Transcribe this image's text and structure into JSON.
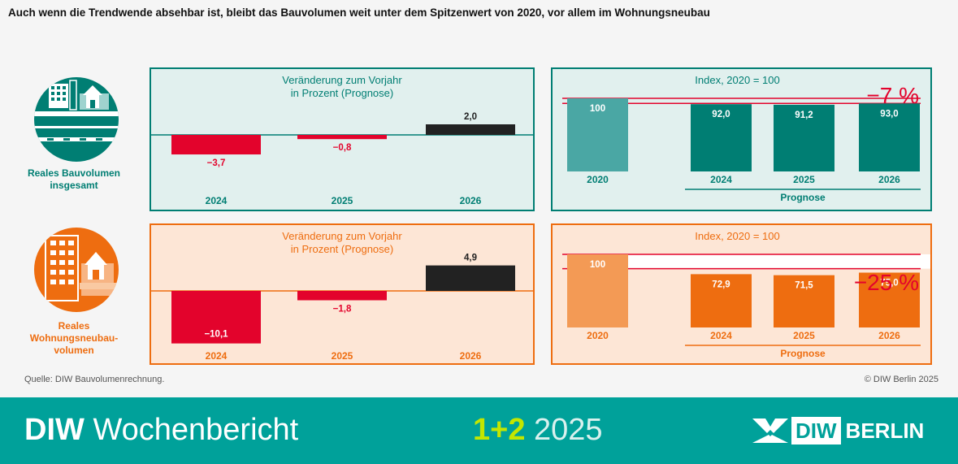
{
  "title": "Auch wenn die Trendwende absehbar ist, bleibt das Bauvolumen weit unter dem Spitzenwert von 2020, vor allem im Wohnungsneubau",
  "colors": {
    "teal": "#007e73",
    "teal_light": "#e1f0ee",
    "teal_2020": "#4aa7a4",
    "red": "#e3032c",
    "orange": "#ee6d10",
    "orange_light": "#fde6d6",
    "orange_2020": "#f39a55",
    "dark": "#222222",
    "footer": "#00a19a",
    "footer_highlight": "#c3e600"
  },
  "rows": [
    {
      "label_lines": [
        "Reales Bauvolumen",
        "insgesamt"
      ],
      "icon": "building-street-icon",
      "theme": "teal"
    },
    {
      "label_lines": [
        "Reales",
        "Wohnungsneubau-",
        "volumen"
      ],
      "icon": "residential-building-icon",
      "theme": "orange"
    }
  ],
  "chart_data": [
    {
      "type": "bar",
      "title": "Veränderung zum Vorjahr\nin Prozent (Prognose)",
      "categories": [
        "2024",
        "2025",
        "2026"
      ],
      "values": [
        -3.7,
        -0.8,
        2.0
      ],
      "labels": [
        "−3,7",
        "−0,8",
        "2,0"
      ],
      "colors": [
        "#e3032c",
        "#e3032c",
        "#222222"
      ],
      "ylim": [
        -5,
        3
      ],
      "theme": "teal"
    },
    {
      "type": "bar",
      "title": "Index, 2020 = 100",
      "categories": [
        "2020",
        "2024",
        "2025",
        "2026"
      ],
      "values": [
        100,
        92.0,
        91.2,
        93.0
      ],
      "labels": [
        "100",
        "92,0",
        "91,2",
        "93,0"
      ],
      "annotation": "−7 %",
      "bracket_label": "Prognose",
      "ylim": [
        0,
        100
      ],
      "theme": "teal"
    },
    {
      "type": "bar",
      "title": "Veränderung zum Vorjahr\nin Prozent (Prognose)",
      "categories": [
        "2024",
        "2025",
        "2026"
      ],
      "values": [
        -10.1,
        -1.8,
        4.9
      ],
      "labels": [
        "−10,1",
        "−1,8",
        "4,9"
      ],
      "colors": [
        "#e3032c",
        "#e3032c",
        "#222222"
      ],
      "ylim": [
        -12,
        6
      ],
      "theme": "orange"
    },
    {
      "type": "bar",
      "title": "Index, 2020 = 100",
      "categories": [
        "2020",
        "2024",
        "2025",
        "2026"
      ],
      "values": [
        100,
        72.9,
        71.5,
        75.0
      ],
      "labels": [
        "100",
        "72,9",
        "71,5",
        "75,0"
      ],
      "annotation": "−25 %",
      "bracket_label": "Prognose",
      "ylim": [
        0,
        100
      ],
      "theme": "orange"
    }
  ],
  "source": "Quelle: DIW Bauvolumenrechnung.",
  "copyright": "© DIW Berlin 2025",
  "footer": {
    "brand_bold": "DIW",
    "brand_rest": "Wochenbericht",
    "issue_bold": "1+2",
    "issue_year": "2025",
    "logo_bold": "DIW",
    "logo_rest": "BERLIN"
  }
}
